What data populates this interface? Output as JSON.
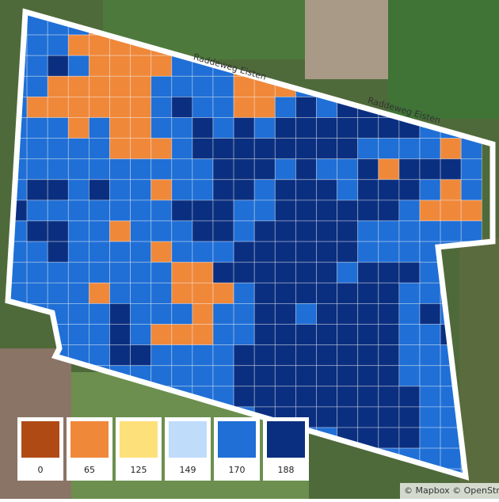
{
  "map": {
    "road_labels": [
      "Raddeweg Eisten",
      "Raddeweg Eisten"
    ],
    "attribution": "© Mapbox © OpenStree",
    "grid": [
      "44441111144444444444444",
      "44411111144444444444444",
      "44541111444111444444444",
      "44111114444111445544444",
      "41111114544114545555444",
      "44414114454545555555444",
      "44444111455555555444414",
      "44444444445554544515554",
      "45545441445545554555414",
      "54444444555445555554111",
      "45544144455455555444444",
      "44544441444555555444444",
      "44444444115555554555444",
      "44441444111455555554444",
      "44444544414455455554544",
      "44444541114455555554454",
      "44444554444555555554444",
      "44444444444555555554444",
      "44444444444555555555444",
      "44444444444455555555444",
      "44444444444444445555444",
      "44444444444444444444444",
      "44444444444444444444444"
    ]
  },
  "legend": {
    "items": [
      {
        "value": 0,
        "color": "#b04a14"
      },
      {
        "value": 65,
        "color": "#f0883a"
      },
      {
        "value": 125,
        "color": "#fde07a"
      },
      {
        "value": 149,
        "color": "#bfdcfb"
      },
      {
        "value": 170,
        "color": "#1f6fd6"
      },
      {
        "value": 188,
        "color": "#0b2f80"
      }
    ]
  }
}
